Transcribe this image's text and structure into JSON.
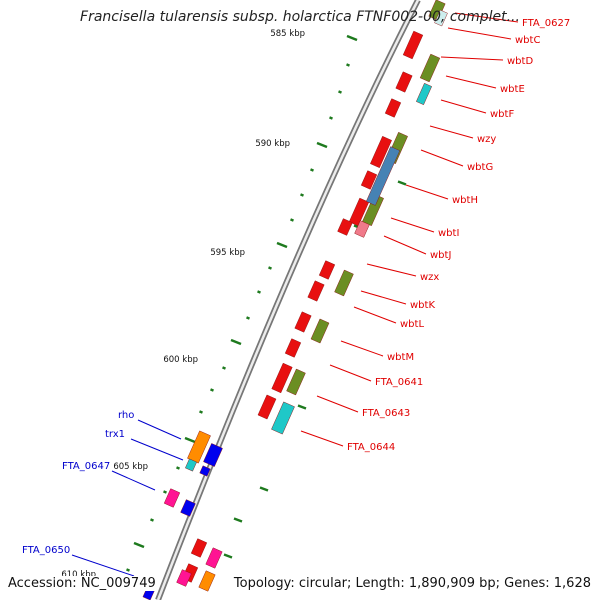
{
  "header": {
    "title": "Francisella tularensis subsp. holarctica FTNF002-00, complet..."
  },
  "footer": {
    "accession": "Accession: NC_009749",
    "stats": "Topology: circular; Length: 1,890,909 bp; Genes: 1,628"
  },
  "colors": {
    "backbone": "#8f8f8f",
    "tick": "#1e7a1e",
    "label_forward": "#e00000",
    "label_reverse": "#0000cc",
    "gene_red": "#e81010",
    "gene_olive": "#6b8e23",
    "gene_steel": "#4682b4",
    "gene_cyan": "#1fc8c8",
    "gene_pink": "#f07a8a",
    "gene_orange": "#ff8c00",
    "gene_blue": "#0000ee",
    "gene_magenta": "#ff1493"
  },
  "scale_labels": [
    "585 kbp",
    "590 kbp",
    "595 kbp",
    "600 kbp",
    "605 kbp",
    "610 kbp"
  ],
  "forward_genes": [
    "FTA_0627",
    "wbtC",
    "wbtD",
    "wbtE",
    "wbtF",
    "wzy",
    "wbtG",
    "wbtH",
    "wbtI",
    "wbtJ",
    "wzx",
    "wbtK",
    "wbtL",
    "wbtM",
    "FTA_0641",
    "FTA_0643",
    "FTA_0644"
  ],
  "reverse_genes": [
    "rho",
    "trx1",
    "FTA_0647",
    "FTA_0650"
  ]
}
